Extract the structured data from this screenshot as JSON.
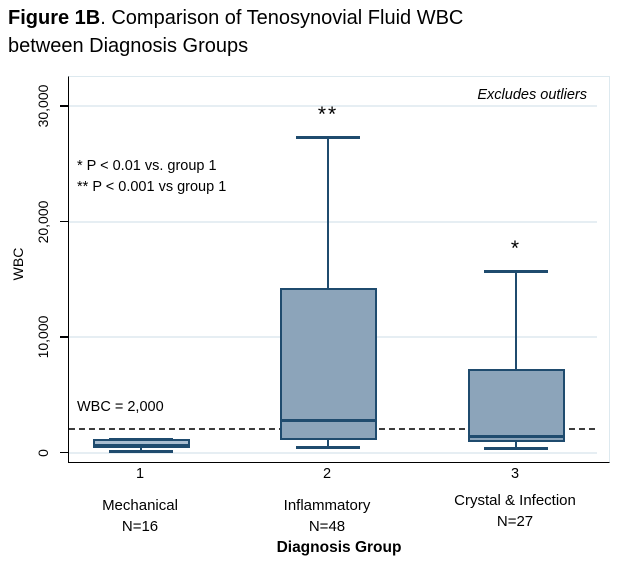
{
  "title": {
    "bold": "Figure 1B",
    "line1_rest": ". Comparison of Tenosynovial Fluid WBC",
    "line2": "between Diagnosis Groups"
  },
  "chart_data": {
    "type": "box",
    "note": "Excludes outliers",
    "sig_legend": [
      "* P < 0.01 vs. group 1",
      "** P < 0.001 vs group 1"
    ],
    "ref_line": {
      "value": 2000,
      "label": "WBC = 2,000"
    },
    "xlabel": "Diagnosis Group",
    "ylabel": "WBC",
    "ylim": [
      0,
      30000
    ],
    "yticks": [
      0,
      10000,
      20000,
      30000
    ],
    "ytick_labels": [
      "0",
      "10,000",
      "20,000",
      "30,000"
    ],
    "grid": "horizontal",
    "legend": "none",
    "groups": [
      {
        "tick": "1",
        "label": "Mechanical",
        "n_label": "N=16",
        "min": 100,
        "q1": 400,
        "median": 900,
        "q3": 1200,
        "max": 1200,
        "sig": "",
        "box_fill": "#1f4b6e",
        "median_color": "#a9bdd0"
      },
      {
        "tick": "2",
        "label": "Inflammatory",
        "n_label": "N=48",
        "min": 500,
        "q1": 1100,
        "median": 2800,
        "q3": 14200,
        "max": 27300,
        "sig": "**"
      },
      {
        "tick": "3",
        "label": "Crystal & Infection",
        "n_label": "N=27",
        "min": 400,
        "q1": 900,
        "median": 1400,
        "q3": 7200,
        "max": 15700,
        "sig": "*"
      }
    ],
    "style": {
      "box_fill": "#8ca4ba",
      "box_border": "#1f4b6e",
      "gridline_color": "#e6eef3",
      "ref_line_color": "#3d3d3d",
      "axis_color": "#000000"
    }
  }
}
